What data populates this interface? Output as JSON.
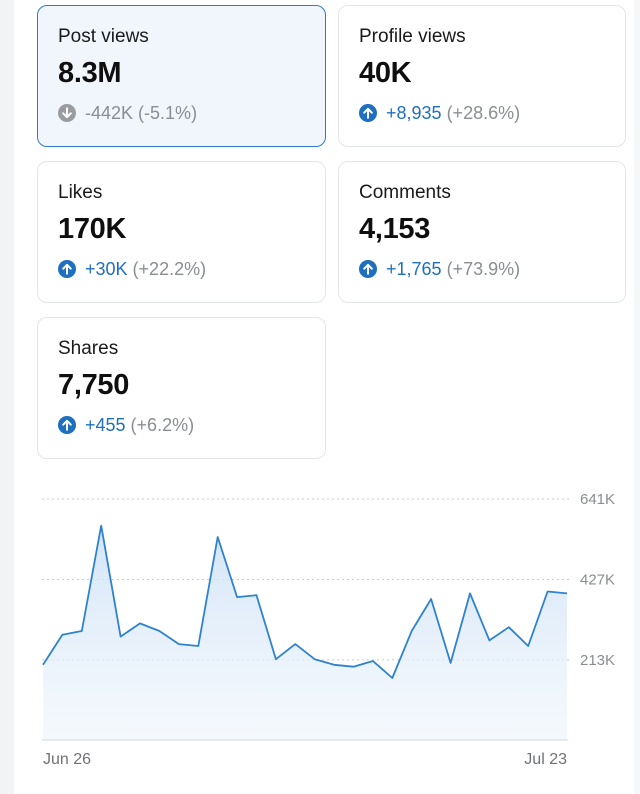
{
  "metrics": {
    "post_views": {
      "label": "Post views",
      "value": "8.3M",
      "change": "-442K",
      "pct": "(-5.1%)",
      "direction": "down",
      "icon": "arrow-down-circle-icon"
    },
    "profile_views": {
      "label": "Profile views",
      "value": "40K",
      "change": "+8,935",
      "pct": "(+28.6%)",
      "direction": "up",
      "icon": "arrow-up-circle-icon"
    },
    "likes": {
      "label": "Likes",
      "value": "170K",
      "change": "+30K",
      "pct": "(+22.2%)",
      "direction": "up",
      "icon": "arrow-up-circle-icon"
    },
    "comments": {
      "label": "Comments",
      "value": "4,153",
      "change": "+1,765",
      "pct": "(+73.9%)",
      "direction": "up",
      "icon": "arrow-up-circle-icon"
    },
    "shares": {
      "label": "Shares",
      "value": "7,750",
      "change": "+455",
      "pct": "(+6.2%)",
      "direction": "up",
      "icon": "arrow-up-circle-icon"
    }
  },
  "colors": {
    "accent": "#2d7bd1",
    "up": "#1f6fbf",
    "down_icon": "#9a9ca0",
    "muted": "#8a8d91"
  },
  "chart_data": {
    "type": "area",
    "x_start_label": "Jun 26",
    "x_end_label": "Jul 23",
    "y_ticks": [
      "213K",
      "427K",
      "641K"
    ],
    "ylim": [
      0,
      641000
    ],
    "grid": true,
    "series": [
      {
        "values": [
          200000,
          280000,
          290000,
          570000,
          275000,
          310000,
          290000,
          255000,
          250000,
          540000,
          380000,
          385000,
          215000,
          255000,
          215000,
          200000,
          195000,
          210000,
          165000,
          290000,
          375000,
          205000,
          390000,
          265000,
          300000,
          250000,
          395000,
          390000
        ]
      }
    ]
  }
}
